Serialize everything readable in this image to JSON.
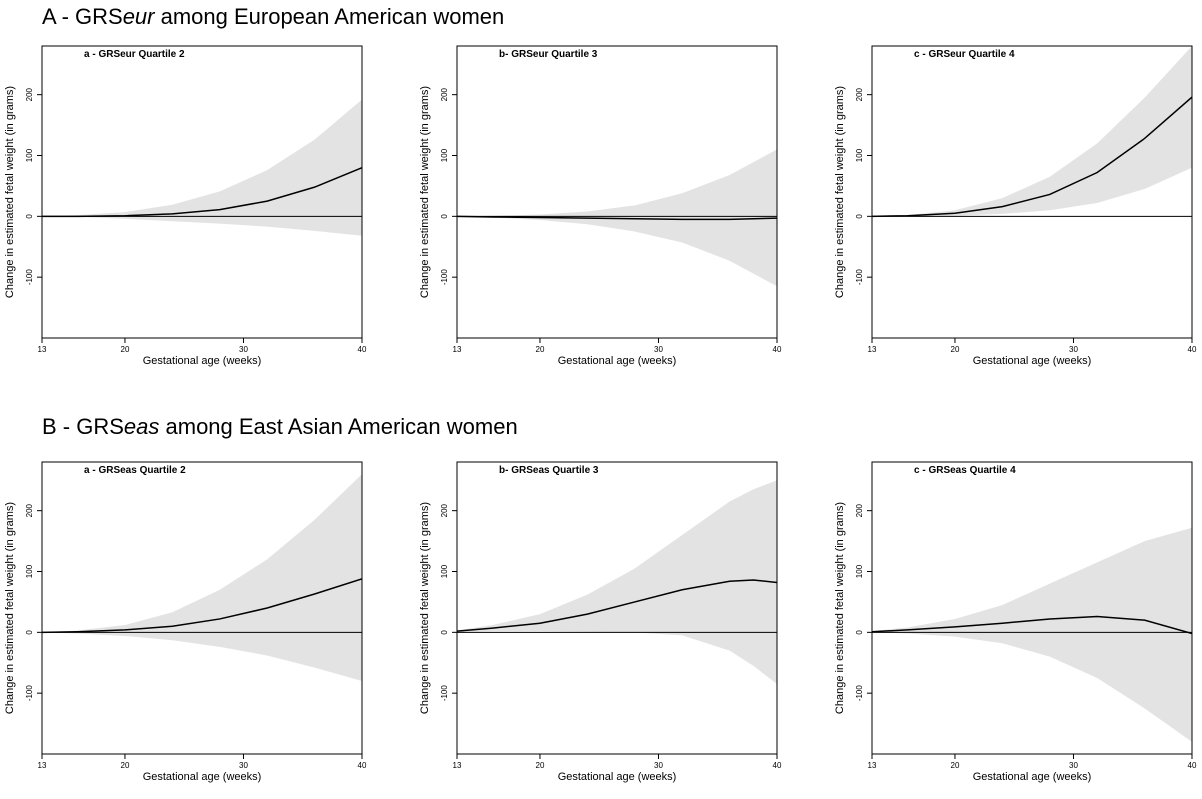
{
  "sections": [
    {
      "prefix": "A - GRS",
      "italic": "eur",
      "suffix": " among European American women"
    },
    {
      "prefix": "B - GRS",
      "italic": "eas",
      "suffix": " among East Asian American women"
    }
  ],
  "colors": {
    "band": "#e3e3e3",
    "line": "#000000",
    "axis": "#000000"
  },
  "chart_data": [
    {
      "type": "area",
      "title": "a - GRSeur Quartile 2",
      "xlabel": "Gestational age (weeks)",
      "ylabel": "Change in estimated fetal weight (in grams)",
      "xlim": [
        13,
        40
      ],
      "ylim": [
        -200,
        280
      ],
      "xticks": [
        13,
        20,
        30,
        40
      ],
      "yticks": [
        -100,
        0,
        100,
        200
      ],
      "reference_line": 0,
      "x": [
        13,
        16,
        20,
        24,
        28,
        32,
        36,
        40
      ],
      "estimate": [
        0,
        0,
        1,
        4,
        11,
        25,
        48,
        80
      ],
      "lower": [
        0,
        -1,
        -4,
        -8,
        -12,
        -17,
        -24,
        -32
      ],
      "upper": [
        0,
        2,
        7,
        19,
        41,
        76,
        126,
        192
      ]
    },
    {
      "type": "area",
      "title": "b- GRSeur Quartile 3",
      "xlabel": "Gestational age (weeks)",
      "ylabel": "Change in estimated fetal weight (in grams)",
      "xlim": [
        13,
        40
      ],
      "ylim": [
        -200,
        280
      ],
      "xticks": [
        13,
        20,
        30,
        40
      ],
      "yticks": [
        -100,
        0,
        100,
        200
      ],
      "reference_line": 0,
      "x": [
        13,
        16,
        20,
        24,
        28,
        32,
        36,
        40
      ],
      "estimate": [
        0,
        -1,
        -2,
        -3,
        -4,
        -5,
        -5,
        -3
      ],
      "lower": [
        0,
        -2,
        -6,
        -13,
        -25,
        -43,
        -73,
        -115
      ],
      "upper": [
        0,
        1,
        3,
        8,
        18,
        38,
        68,
        110
      ]
    },
    {
      "type": "area",
      "title": "c - GRSeur Quartile 4",
      "xlabel": "Gestational age (weeks)",
      "ylabel": "Change in estimated fetal weight (in grams)",
      "xlim": [
        13,
        40
      ],
      "ylim": [
        -200,
        280
      ],
      "xticks": [
        13,
        20,
        30,
        40
      ],
      "yticks": [
        -100,
        0,
        100,
        200
      ],
      "reference_line": 0,
      "x": [
        13,
        16,
        20,
        24,
        28,
        32,
        36,
        40
      ],
      "estimate": [
        0,
        1,
        5,
        16,
        36,
        72,
        128,
        196
      ],
      "lower": [
        0,
        0,
        1,
        4,
        10,
        22,
        45,
        80
      ],
      "upper": [
        0,
        2,
        10,
        30,
        65,
        120,
        195,
        280
      ]
    },
    {
      "type": "area",
      "title": "a - GRSeas Quartile 2",
      "xlabel": "Gestational age (weeks)",
      "ylabel": "Change in estimated fetal weight (in grams)",
      "xlim": [
        13,
        40
      ],
      "ylim": [
        -200,
        280
      ],
      "xticks": [
        13,
        20,
        30,
        40
      ],
      "yticks": [
        -100,
        0,
        100,
        200
      ],
      "reference_line": 0,
      "x": [
        13,
        16,
        20,
        24,
        28,
        32,
        36,
        40
      ],
      "estimate": [
        0,
        1,
        4,
        10,
        22,
        40,
        63,
        88
      ],
      "lower": [
        0,
        -2,
        -6,
        -13,
        -24,
        -38,
        -58,
        -80
      ],
      "upper": [
        0,
        3,
        12,
        33,
        70,
        120,
        185,
        260
      ]
    },
    {
      "type": "area",
      "title": "b- GRSeas Quartile 3",
      "xlabel": "Gestational age (weeks)",
      "ylabel": "Change in estimated fetal weight (in grams)",
      "xlim": [
        13,
        40
      ],
      "ylim": [
        -200,
        280
      ],
      "xticks": [
        13,
        20,
        30,
        40
      ],
      "yticks": [
        -100,
        0,
        100,
        200
      ],
      "reference_line": 0,
      "x": [
        13,
        16,
        20,
        24,
        28,
        32,
        36,
        38,
        40
      ],
      "estimate": [
        2,
        7,
        15,
        30,
        50,
        70,
        84,
        86,
        82
      ],
      "lower": [
        1,
        2,
        2,
        1,
        0,
        -5,
        -30,
        -55,
        -85
      ],
      "upper": [
        3,
        12,
        30,
        62,
        105,
        160,
        215,
        235,
        250
      ]
    },
    {
      "type": "area",
      "title": "c - GRSeas Quartile 4",
      "xlabel": "Gestational age (weeks)",
      "ylabel": "Change in estimated fetal weight (in grams)",
      "xlim": [
        13,
        40
      ],
      "ylim": [
        -200,
        280
      ],
      "xticks": [
        13,
        20,
        30,
        40
      ],
      "yticks": [
        -100,
        0,
        100,
        200
      ],
      "reference_line": 0,
      "x": [
        13,
        16,
        20,
        24,
        28,
        32,
        36,
        40
      ],
      "estimate": [
        1,
        4,
        9,
        15,
        22,
        26,
        20,
        -2
      ],
      "lower": [
        0,
        -2,
        -7,
        -18,
        -40,
        -75,
        -125,
        -180
      ],
      "upper": [
        2,
        8,
        22,
        45,
        80,
        115,
        150,
        172
      ]
    }
  ]
}
